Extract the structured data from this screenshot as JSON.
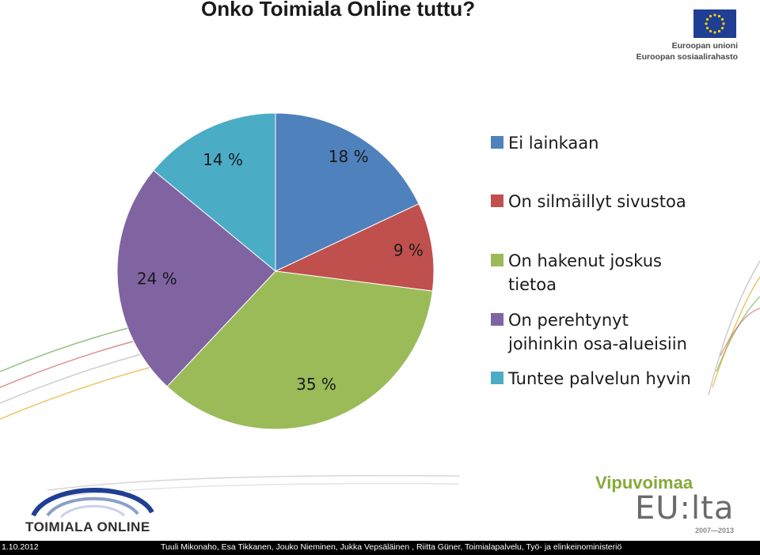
{
  "title": "Onko Toimiala Online tuttu?",
  "chart_data": {
    "type": "pie",
    "categories": [
      "Ei lainkaan",
      "On silmäillyt sivustoa",
      "On hakenut joskus tietoa",
      "On perehtynyt joihinkin osa-alueisiin",
      "Tuntee palvelun hyvin"
    ],
    "values": [
      18,
      9,
      35,
      24,
      14
    ],
    "value_labels": [
      "18 %",
      "9 %",
      "35 %",
      "24 %",
      "14 %"
    ],
    "colors": [
      "#4f81bd",
      "#c0504d",
      "#9bbb59",
      "#8064a2",
      "#4bacc6"
    ],
    "legend_position": "right",
    "start_angle_deg": 0,
    "direction": "clockwise"
  },
  "legend": {
    "items": [
      {
        "lines": [
          "Ei lainkaan"
        ]
      },
      {
        "lines": [
          "On silmäillyt  sivustoa"
        ]
      },
      {
        "lines": [
          "On hakenut joskus",
          "tietoa"
        ]
      },
      {
        "lines": [
          "On perehtynyt",
          "joihinkin osa-alueisiin"
        ]
      },
      {
        "lines": [
          "Tuntee palvelun hyvin"
        ]
      }
    ]
  },
  "logos": {
    "eu": {
      "line1": "Euroopan unioni",
      "line2": "Euroopan sosiaalirahasto",
      "flag_color": "#1f3f94",
      "star_color": "#ffd200"
    },
    "toimiala": {
      "wordmark": "TOIMIALA ONLINE"
    },
    "vipuvoimaa": {
      "word": "Vipuvoimaa",
      "eu": "EU:lta",
      "years": "2007—2013"
    }
  },
  "footer": {
    "date": "1.10.2012",
    "authors": "Tuuli Mikonaho, Esa Tikkanen, Jouko Nieminen, Jukka Vepsäläinen , Riitta Güner, Toimialapalvelu, Työ- ja elinkeinoministeriö"
  }
}
